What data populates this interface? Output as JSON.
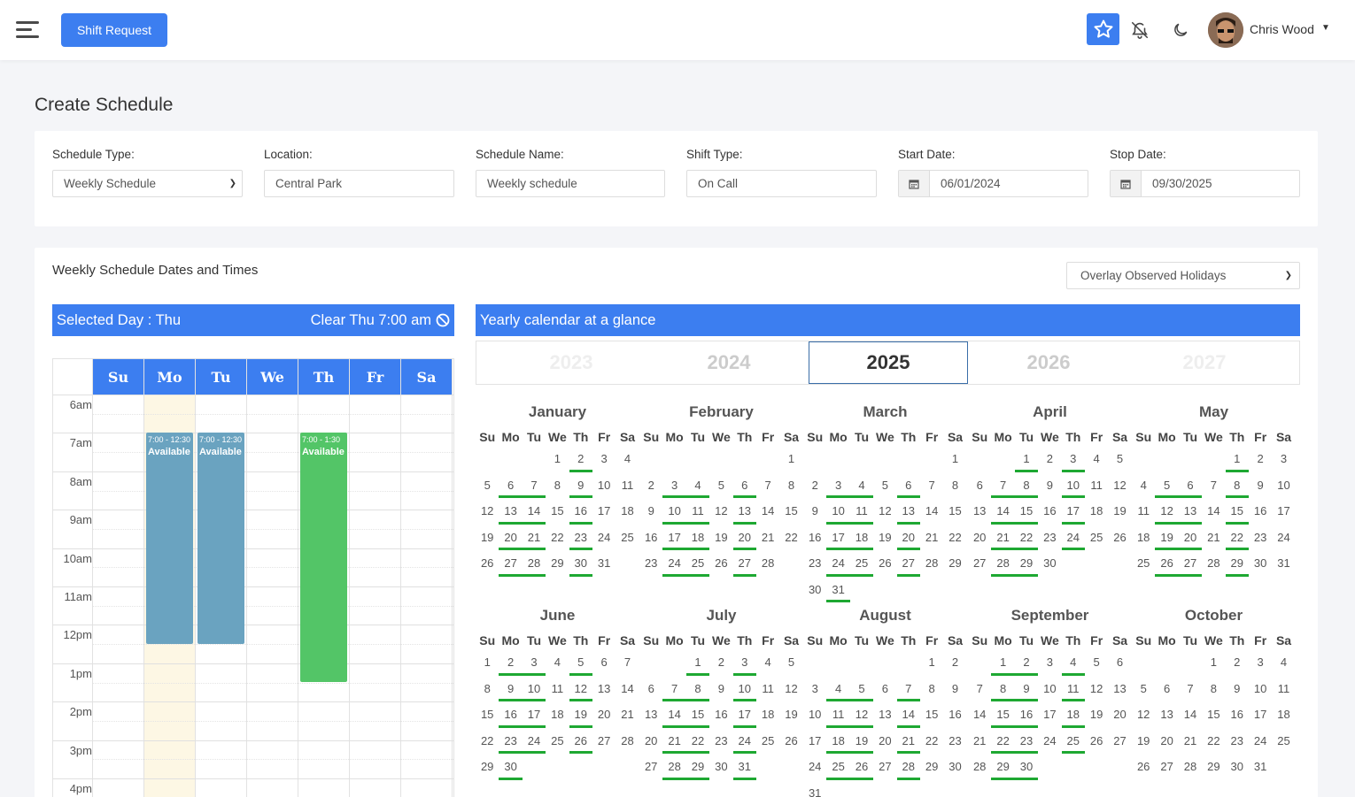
{
  "header": {
    "shift_request_label": "Shift Request",
    "user_name": "Chris Wood",
    "accent": "#3c7ef0"
  },
  "page_title": "Create Schedule",
  "form": {
    "schedule_type": {
      "label": "Schedule Type:",
      "value": "Weekly Schedule"
    },
    "location": {
      "label": "Location:",
      "value": "Central Park"
    },
    "schedule_name": {
      "label": "Schedule Name:",
      "value": "Weekly schedule"
    },
    "shift_type": {
      "label": "Shift Type:",
      "value": "On Call"
    },
    "start_date": {
      "label": "Start Date:",
      "value": "06/01/2024"
    },
    "stop_date": {
      "label": "Stop Date:",
      "value": "09/30/2025"
    }
  },
  "weekly": {
    "title": "Weekly Schedule Dates and Times",
    "overlay_select": "Overlay Observed Holidays",
    "selected_day": "Selected Day : Thu",
    "clear_label": "Clear Thu 7:00 am",
    "days": [
      "Su",
      "Mo",
      "Tu",
      "We",
      "Th",
      "Fr",
      "Sa"
    ],
    "hours": [
      "6am",
      "7am",
      "8am",
      "9am",
      "10am",
      "11am",
      "12pm",
      "1pm",
      "2pm",
      "3pm",
      "4pm"
    ],
    "events": [
      {
        "day": 1,
        "time": "7:00 - 12:30",
        "name": "Available",
        "start": 7,
        "end": 12.5,
        "color": "#6aa3c0"
      },
      {
        "day": 2,
        "time": "7:00 - 12:30",
        "name": "Available",
        "start": 7,
        "end": 12.5,
        "color": "#6aa3c0"
      },
      {
        "day": 4,
        "time": "7:00 - 1:30",
        "name": "Available",
        "start": 7,
        "end": 13.5,
        "color": "#53c567"
      }
    ]
  },
  "yearly": {
    "title": "Yearly calendar at a glance",
    "years": [
      "2023",
      "2024",
      "2025",
      "2026",
      "2027"
    ],
    "selected_year": "2025",
    "dow": [
      "Su",
      "Mo",
      "Tu",
      "We",
      "Th",
      "Fr",
      "Sa"
    ],
    "months": [
      {
        "name": "January",
        "start": 3,
        "days": 31
      },
      {
        "name": "February",
        "start": 6,
        "days": 28
      },
      {
        "name": "March",
        "start": 6,
        "days": 31
      },
      {
        "name": "April",
        "start": 2,
        "days": 30
      },
      {
        "name": "May",
        "start": 4,
        "days": 31
      },
      {
        "name": "June",
        "start": 0,
        "days": 30
      },
      {
        "name": "July",
        "start": 2,
        "days": 31
      },
      {
        "name": "August",
        "start": 5,
        "days": 31
      },
      {
        "name": "September",
        "start": 1,
        "days": 30
      },
      {
        "name": "October",
        "start": 3,
        "days": 31
      }
    ],
    "highlight_color": "#1ea832"
  }
}
